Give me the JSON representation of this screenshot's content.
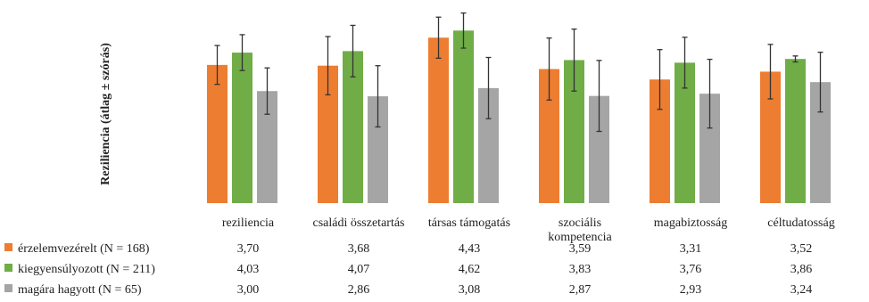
{
  "chart_data": {
    "type": "bar",
    "ylabel": "Reziliencia (átlag ± szórás)",
    "categories": [
      "reziliencia",
      "családi összetartás",
      "társas támogatás",
      "szociális kompetencia",
      "magabiztosság",
      "céltudatosság"
    ],
    "category_lines": [
      [
        "reziliencia"
      ],
      [
        "családi összetartás"
      ],
      [
        "társas támogatás"
      ],
      [
        "szociális",
        "kompetencia"
      ],
      [
        "magabiztosság"
      ],
      [
        "céltudatosság"
      ]
    ],
    "ylim": [
      0,
      5.2
    ],
    "grid": false,
    "series": [
      {
        "name": "érzelemvezérelt (N = 168)",
        "color": "#ED7D31",
        "values": [
          3.7,
          3.68,
          4.43,
          3.59,
          3.31,
          3.52
        ],
        "labels": [
          "3,70",
          "3,68",
          "4,43",
          "3,59",
          "3,31",
          "3,52"
        ],
        "sd": [
          0.52,
          0.78,
          0.55,
          0.83,
          0.8,
          0.73
        ]
      },
      {
        "name": "kiegyensúlyozott (N = 211)",
        "color": "#70AD47",
        "values": [
          4.03,
          4.07,
          4.62,
          3.83,
          3.76,
          3.86
        ],
        "labels": [
          "4,03",
          "4,07",
          "4,62",
          "3,83",
          "3,76",
          "3,86"
        ],
        "sd": [
          0.48,
          0.69,
          0.47,
          0.83,
          0.68,
          0.08
        ]
      },
      {
        "name": "magára hagyott (N = 65)",
        "color": "#A5A5A5",
        "values": [
          3.0,
          2.86,
          3.08,
          2.87,
          2.93,
          3.24
        ],
        "labels": [
          "3,00",
          "2,86",
          "3,08",
          "2,87",
          "2,93",
          "3,24"
        ],
        "sd": [
          0.62,
          0.82,
          0.82,
          0.95,
          0.92,
          0.8
        ]
      }
    ]
  }
}
